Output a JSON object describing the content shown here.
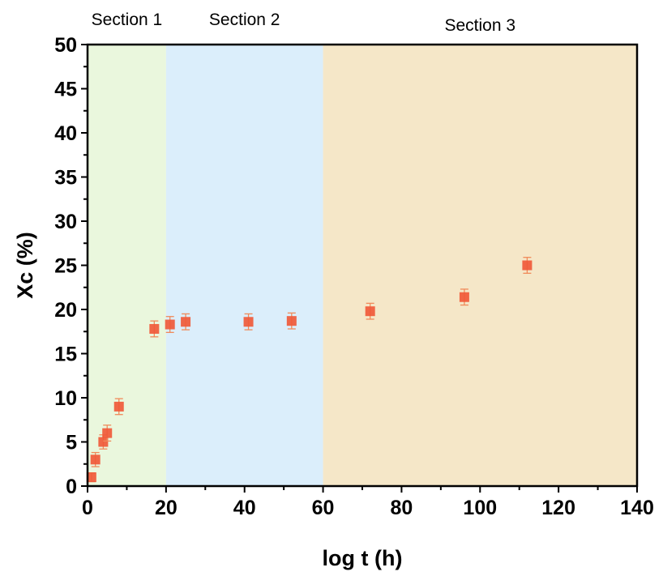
{
  "chart_data": {
    "type": "scatter",
    "xlabel": "log t (h)",
    "ylabel": "Xc (%)",
    "xlim": [
      0,
      140
    ],
    "ylim": [
      0,
      50
    ],
    "xticks": [
      0,
      20,
      40,
      60,
      80,
      100,
      120,
      140
    ],
    "yticks": [
      0,
      5,
      10,
      15,
      20,
      25,
      30,
      35,
      40,
      45,
      50
    ],
    "grid": false,
    "sections": [
      {
        "label": "Section 1",
        "x_range": [
          0,
          20
        ],
        "color": "#eaf7dd"
      },
      {
        "label": "Section 2",
        "x_range": [
          20,
          60
        ],
        "color": "#dbeefb"
      },
      {
        "label": "Section 3",
        "x_range": [
          60,
          140
        ],
        "color": "#f5e7c8"
      }
    ],
    "marker_color": "#f05a3a",
    "errorbar_color": "#f08a5a",
    "points": [
      {
        "x": 1,
        "y": 1.0,
        "err": 0.5
      },
      {
        "x": 2,
        "y": 3.0,
        "err": 0.8
      },
      {
        "x": 4,
        "y": 5.0,
        "err": 0.8
      },
      {
        "x": 5,
        "y": 6.0,
        "err": 0.9
      },
      {
        "x": 8,
        "y": 9.0,
        "err": 0.9
      },
      {
        "x": 17,
        "y": 17.8,
        "err": 0.9
      },
      {
        "x": 21,
        "y": 18.3,
        "err": 0.9
      },
      {
        "x": 25,
        "y": 18.6,
        "err": 0.9
      },
      {
        "x": 41,
        "y": 18.6,
        "err": 0.9
      },
      {
        "x": 52,
        "y": 18.7,
        "err": 0.9
      },
      {
        "x": 72,
        "y": 19.8,
        "err": 0.9
      },
      {
        "x": 96,
        "y": 21.4,
        "err": 0.9
      },
      {
        "x": 112,
        "y": 25.0,
        "err": 0.9
      }
    ]
  }
}
